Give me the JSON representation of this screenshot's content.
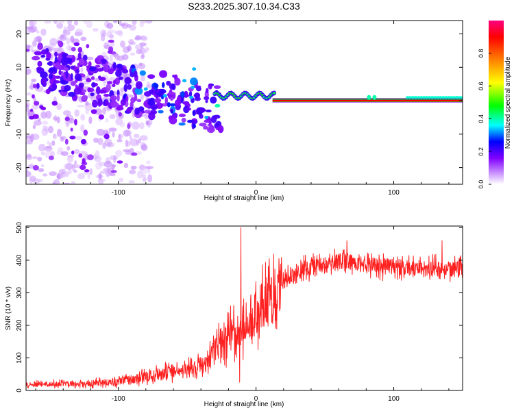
{
  "title": "S233.2025.307.10.34.C33",
  "colors": {
    "snr_line": "#ff2020",
    "axis": "#000000",
    "background": "#ffffff",
    "tonal_band": "#ff0000"
  },
  "chart_data": [
    {
      "type": "heatmap",
      "title": "S233.2025.307.10.34.C33",
      "xlabel": "Height of straight line (km)",
      "ylabel": "Frequency (Hz)",
      "xlim": [
        -167,
        150
      ],
      "ylim": [
        -25,
        24
      ],
      "xticks": [
        -100,
        0,
        100
      ],
      "yticks": [
        -20,
        -10,
        0,
        10,
        20
      ],
      "colorbar": {
        "label": "Normalized spectral amplitude",
        "range": [
          0,
          1
        ],
        "ticks": [
          "0.0",
          "0.2",
          "0.4",
          "0.6",
          "0.8"
        ],
        "stops": [
          "#ffffff",
          "#c080ff",
          "#8000ff",
          "#0000ff",
          "#00ffff",
          "#00ff00",
          "#ffff00",
          "#ff8000",
          "#ff0000",
          "#ff0080"
        ]
      },
      "features": [
        {
          "name": "broadband noise",
          "x_range": [
            -167,
            -90
          ],
          "freq_range": [
            -25,
            24
          ],
          "amplitude": 0.1
        },
        {
          "name": "descending blobs",
          "x_range": [
            -110,
            -25
          ],
          "freq_range": [
            -10,
            14
          ],
          "amplitude": 0.3
        },
        {
          "name": "transition",
          "x_range": [
            -30,
            12
          ],
          "freq_range": [
            -2,
            3
          ],
          "amplitude": 0.45
        },
        {
          "name": "tonal line",
          "x_range": [
            12,
            150
          ],
          "freq": 0,
          "amplitude": 0.95
        }
      ]
    },
    {
      "type": "line",
      "xlabel": "Height of straight line (km)",
      "ylabel": "SNR (10 * v/v)",
      "xlim": [
        -167,
        150
      ],
      "ylim": [
        0,
        505
      ],
      "xticks": [
        -100,
        0,
        100
      ],
      "yticks": [
        0,
        100,
        200,
        300,
        400,
        500
      ],
      "series": [
        {
          "name": "SNR",
          "trend_x": [
            -167,
            -120,
            -100,
            -80,
            -60,
            -45,
            -35,
            -25,
            -15,
            -10,
            -5,
            0,
            10,
            20,
            30,
            50,
            65,
            80,
            100,
            120,
            150
          ],
          "trend_y": [
            18,
            22,
            28,
            42,
            58,
            70,
            95,
            145,
            180,
            200,
            225,
            240,
            275,
            330,
            370,
            385,
            400,
            385,
            380,
            375,
            372
          ],
          "spikes": [
            {
              "x": -11,
              "y": 500
            },
            {
              "x": -12,
              "y": 25
            },
            {
              "x": 66,
              "y": 460
            },
            {
              "x": 135,
              "y": 460
            },
            {
              "x": 10,
              "y": 260
            }
          ]
        }
      ]
    }
  ]
}
